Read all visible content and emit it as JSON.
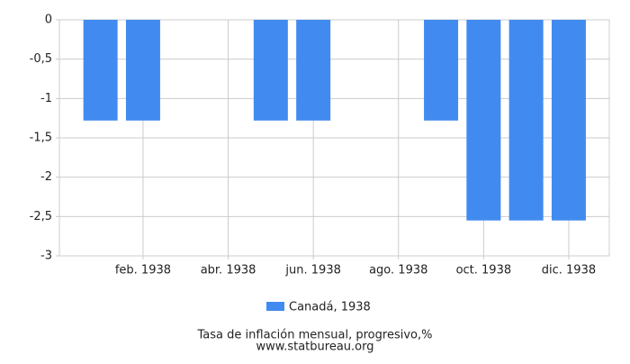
{
  "chart_data": {
    "type": "bar",
    "categories": [
      null,
      "feb. 1938",
      null,
      "abr. 1938",
      null,
      "jun. 1938",
      null,
      "ago. 1938",
      null,
      "oct. 1938",
      null,
      "dic. 1938"
    ],
    "series": [
      {
        "name": "Canadá, 1938",
        "color": "#418bf0",
        "values": [
          -1.28,
          -1.28,
          0,
          0,
          -1.28,
          -1.28,
          0,
          0,
          -1.28,
          -2.55,
          -2.55,
          -2.55
        ]
      }
    ],
    "ylim": [
      -3,
      0
    ],
    "yticks": [
      0,
      {
        "value": -0.5,
        "label": "-0,5"
      },
      -1,
      {
        "value": -1.5,
        "label": "-1,5"
      },
      -2,
      {
        "value": -2.5,
        "label": "-2,5"
      },
      -3
    ],
    "grid": true,
    "footer": [
      "Tasa de inflación mensual, progresivo,%",
      "www.statbureau.org"
    ]
  }
}
